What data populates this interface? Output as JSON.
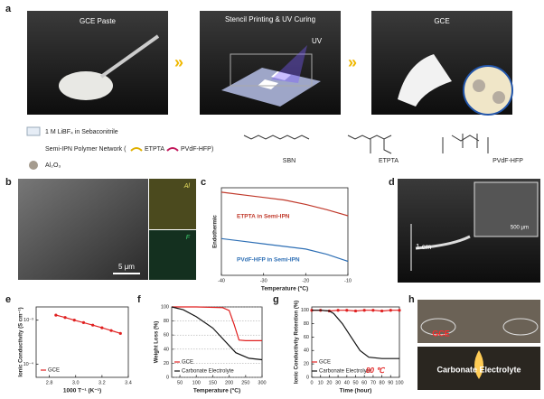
{
  "panels": {
    "a": {
      "letter": "a",
      "photo1": "GCE Paste",
      "photo2": "Stencil Printing & UV Curing",
      "photo3": "GCE",
      "uv": "UV",
      "legend1": "1 M LiBF₄ in Sebaconitrile",
      "legend2": "Semi-IPN Polymer Network (",
      "legend2a": "ETPTA",
      "legend2b": "PVdF-HFP",
      "legend2c": ")",
      "legend3": "Al₂O₃",
      "chem1": "SBN",
      "chem2": "ETPTA",
      "chem3": "PVdF-HFP"
    },
    "b": {
      "letter": "b",
      "scale": "5 μm",
      "map1": "Al",
      "map2": "F"
    },
    "c": {
      "letter": "c"
    },
    "d": {
      "letter": "d",
      "length": "1 cm",
      "scale": "500 μm"
    },
    "e": {
      "letter": "e"
    },
    "f": {
      "letter": "f"
    },
    "g": {
      "letter": "g"
    },
    "h": {
      "letter": "h",
      "label1": "GCE",
      "label2": "Carbonate Electrolyte"
    }
  },
  "chart_data": [
    {
      "type": "line",
      "xlabel": "Temperature (°C)",
      "ylabel": "Endothermic",
      "xlim": [
        -40,
        -10
      ],
      "xticks": [
        -40,
        -30,
        -20,
        -10
      ],
      "ylim": [
        0,
        10
      ],
      "yticks": [],
      "series": [
        {
          "name": "ETPTA in Semi-IPN",
          "color": "#c0392b",
          "x": [
            -40,
            -35,
            -30,
            -25,
            -20,
            -15,
            -10
          ],
          "values": [
            9.5,
            9.2,
            8.9,
            8.6,
            8.1,
            7.5,
            6.8
          ]
        },
        {
          "name": "PVdF-HFP in Semi-IPN",
          "color": "#2e6fb5",
          "x": [
            -40,
            -35,
            -30,
            -25,
            -20,
            -15,
            -10
          ],
          "values": [
            4.2,
            3.9,
            3.6,
            3.3,
            3.0,
            2.4,
            1.6
          ]
        }
      ]
    },
    {
      "type": "line",
      "xlabel": "1000 T⁻¹ (K⁻¹)",
      "ylabel": "Ionic Conductivity (S cm⁻¹)",
      "log_y": true,
      "xlim": [
        2.7,
        3.4
      ],
      "xticks": [
        2.8,
        {
          "value": 3,
          "label": "3.0"
        },
        3.2,
        3.4
      ],
      "ylim": [
        5e-05,
        0.002
      ],
      "yticks": [
        {
          "value": 0.001,
          "label": "10⁻³"
        },
        {
          "value": 0.0001,
          "label": "10⁻⁴"
        }
      ],
      "series": [
        {
          "name": "GCE",
          "color": "#e02020",
          "marker": true,
          "x": [
            2.85,
            2.92,
            2.99,
            3.06,
            3.13,
            3.2,
            3.27,
            3.34
          ],
          "values": [
            0.0013,
            0.00115,
            0.001,
            0.00088,
            0.00077,
            0.00067,
            0.00058,
            0.0005
          ]
        }
      ]
    },
    {
      "type": "line",
      "xlabel": "Temperature (°C)",
      "ylabel": "Weight Loss (%)",
      "xlim": [
        25,
        300
      ],
      "xticks": [
        50,
        100,
        150,
        200,
        250,
        300
      ],
      "ylim": [
        0,
        100
      ],
      "yticks": [
        0,
        20,
        40,
        60,
        80,
        100
      ],
      "grid": true,
      "series": [
        {
          "name": "GCE",
          "color": "#e02020",
          "x": [
            25,
            100,
            180,
            200,
            215,
            230,
            250,
            300
          ],
          "values": [
            100,
            100,
            99,
            95,
            75,
            53,
            52,
            52
          ]
        },
        {
          "name": "Carbonate Electrolyte",
          "color": "#111111",
          "x": [
            25,
            60,
            100,
            150,
            180,
            220,
            260,
            300
          ],
          "values": [
            100,
            96,
            86,
            70,
            55,
            35,
            27,
            25
          ]
        }
      ]
    },
    {
      "type": "line",
      "xlabel": "Time (hour)",
      "ylabel": "Ionic Conductivity Retention (%)",
      "annotation": "80 ℃",
      "xlim": [
        0,
        100
      ],
      "xticks": [
        0,
        10,
        20,
        30,
        40,
        50,
        60,
        70,
        80,
        90,
        100
      ],
      "ylim": [
        0,
        105
      ],
      "yticks": [
        0,
        20,
        40,
        60,
        80,
        100
      ],
      "series": [
        {
          "name": "GCE",
          "color": "#e02020",
          "marker": true,
          "x": [
            0,
            10,
            20,
            30,
            40,
            50,
            60,
            70,
            80,
            90,
            100
          ],
          "values": [
            100,
            100,
            99,
            100,
            100,
            99,
            100,
            100,
            99,
            100,
            100
          ]
        },
        {
          "name": "Carbonate Electrolyte",
          "color": "#111111",
          "x": [
            0,
            10,
            20,
            25,
            35,
            45,
            55,
            65,
            80,
            100
          ],
          "values": [
            100,
            100,
            99,
            95,
            80,
            60,
            40,
            30,
            28,
            28
          ]
        }
      ]
    }
  ]
}
